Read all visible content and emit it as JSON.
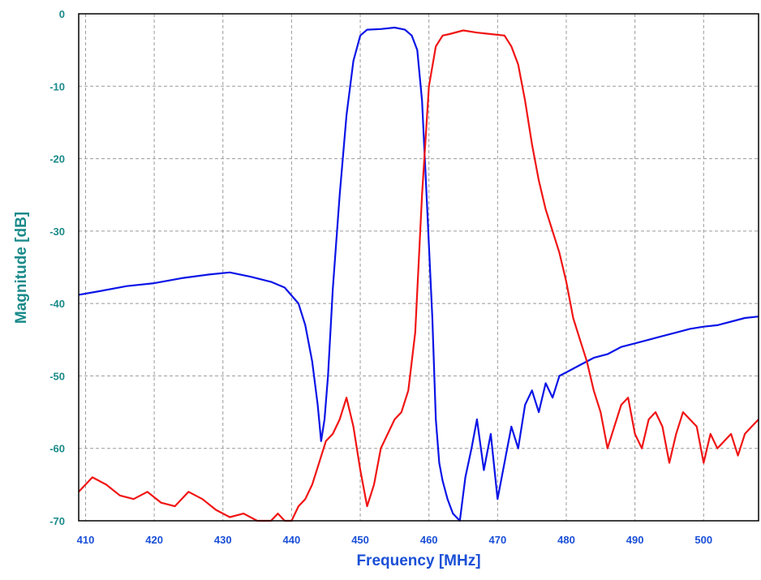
{
  "chart_data": {
    "type": "line",
    "xlabel": "Frequency [MHz]",
    "ylabel": "Magnitude [dB]",
    "xlim": [
      409,
      508
    ],
    "ylim": [
      -70,
      0
    ],
    "xticks": [
      410,
      420,
      430,
      440,
      450,
      460,
      470,
      480,
      490,
      500
    ],
    "yticks": [
      0,
      -10,
      -20,
      -30,
      -40,
      -50,
      -60,
      -70
    ],
    "grid": true,
    "colors": {
      "blue": "#0a14e6",
      "red": "#f01414",
      "tick_y": "#1a8a8a",
      "tick_x": "#1a4fd6"
    },
    "series": [
      {
        "color": "#0a14e6",
        "x": [
          409,
          412,
          416,
          420,
          424,
          428,
          431,
          434,
          437,
          439,
          441,
          442,
          443,
          443.8,
          444.3,
          444.8,
          445.3,
          446,
          447,
          448,
          449,
          450,
          451,
          453,
          455,
          456.5,
          457.5,
          458.3,
          459,
          459.5,
          460,
          460.5,
          461,
          461.5,
          462,
          462.7,
          463.5,
          464.5,
          465.3,
          466.2,
          467,
          468,
          469,
          470,
          471,
          472,
          473,
          474,
          475,
          476,
          477,
          478,
          479,
          480,
          482,
          484,
          486,
          488,
          490,
          492,
          494,
          496,
          498,
          500,
          502,
          504,
          506,
          508
        ],
        "y": [
          -38.8,
          -38.3,
          -37.6,
          -37.2,
          -36.5,
          -36.0,
          -35.7,
          -36.3,
          -37.0,
          -37.8,
          -40.0,
          -43.0,
          -48.0,
          -54.0,
          -59.0,
          -56.0,
          -50.0,
          -38.0,
          -25.0,
          -14.0,
          -6.5,
          -3.0,
          -2.2,
          -2.1,
          -1.9,
          -2.2,
          -3.0,
          -5.0,
          -12.0,
          -22.0,
          -32.0,
          -42.0,
          -56.0,
          -62.0,
          -64.5,
          -67.0,
          -69.0,
          -70.0,
          -64.0,
          -60.0,
          -56.0,
          -63.0,
          -58.0,
          -67.0,
          -62.0,
          -57.0,
          -60.0,
          -54.0,
          -52.0,
          -55.0,
          -51.0,
          -53.0,
          -50.0,
          -49.5,
          -48.5,
          -47.5,
          -47.0,
          -46.0,
          -45.5,
          -45.0,
          -44.5,
          -44.0,
          -43.5,
          -43.2,
          -43.0,
          -42.5,
          -42.0,
          -41.8
        ]
      },
      {
        "color": "#f01414",
        "x": [
          409,
          411,
          413,
          415,
          417,
          419,
          421,
          423,
          425,
          427,
          429,
          431,
          433,
          435,
          437,
          438,
          439,
          440,
          441,
          442,
          443,
          444,
          445,
          446,
          447,
          448,
          449,
          450,
          451,
          452,
          453,
          454,
          455,
          456,
          457,
          458,
          459,
          460,
          461,
          462,
          463,
          465,
          467,
          469,
          471,
          472,
          473,
          474,
          475,
          476,
          477,
          478,
          479,
          480,
          481,
          482,
          483,
          484,
          485,
          486,
          487,
          488,
          489,
          490,
          491,
          492,
          493,
          494,
          495,
          496,
          497,
          498,
          499,
          500,
          501,
          502,
          503,
          504,
          505,
          506,
          507,
          508
        ],
        "y": [
          -66.0,
          -64.0,
          -65.0,
          -66.5,
          -67.0,
          -66.0,
          -67.5,
          -68.0,
          -66.0,
          -67.0,
          -68.5,
          -69.5,
          -69.0,
          -70.0,
          -70.0,
          -69.0,
          -70.0,
          -70.0,
          -68.0,
          -67.0,
          -65.0,
          -62.0,
          -59.0,
          -58.0,
          -56.0,
          -53.0,
          -57.0,
          -63.0,
          -68.0,
          -65.0,
          -60.0,
          -58.0,
          -56.0,
          -55.0,
          -52.0,
          -44.0,
          -25.0,
          -10.0,
          -4.5,
          -3.0,
          -2.8,
          -2.3,
          -2.6,
          -2.8,
          -3.0,
          -4.5,
          -7.0,
          -12.0,
          -18.0,
          -23.0,
          -27.0,
          -30.0,
          -33.0,
          -37.0,
          -42.0,
          -45.0,
          -48.0,
          -52.0,
          -55.0,
          -60.0,
          -57.0,
          -54.0,
          -53.0,
          -58.0,
          -60.0,
          -56.0,
          -55.0,
          -57.0,
          -62.0,
          -58.0,
          -55.0,
          -56.0,
          -57.0,
          -62.0,
          -58.0,
          -60.0,
          -59.0,
          -58.0,
          -61.0,
          -58.0,
          -57.0,
          -56.0
        ]
      }
    ]
  }
}
